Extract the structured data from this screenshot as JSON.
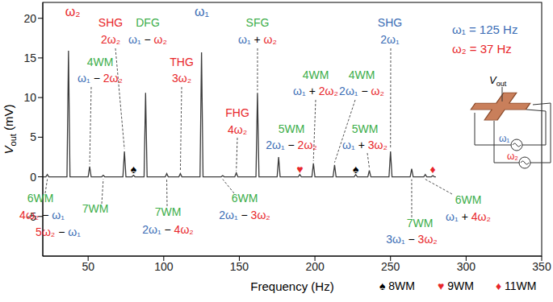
{
  "chart_data": {
    "type": "line",
    "xlabel": "Frequency (Hz)",
    "ylabel": "Vout (mV)",
    "xlim": [
      20,
      350
    ],
    "xticks": [
      50,
      100,
      150,
      200,
      250,
      300,
      350
    ],
    "ylim": [
      -10,
      22
    ],
    "yticks": [
      -5,
      0,
      5,
      10,
      15,
      20
    ],
    "color": "#3c3c3c",
    "x": [
      20,
      22,
      23,
      24,
      36,
      37,
      38,
      50,
      51,
      52,
      59,
      60,
      61,
      73,
      74,
      75,
      79,
      80,
      81,
      87,
      88,
      89,
      101,
      102,
      103,
      110,
      111,
      112,
      124,
      125,
      126,
      138,
      139,
      140,
      147,
      148,
      149,
      161,
      162,
      163,
      175,
      176,
      177,
      189,
      190,
      191,
      198,
      199,
      200,
      212,
      213,
      214,
      226,
      227,
      228,
      235,
      236,
      237,
      249,
      250,
      251,
      263,
      264,
      265,
      272,
      273,
      274,
      277,
      278,
      279,
      280
    ],
    "values": [
      0,
      0,
      0.3,
      0,
      0,
      15.9,
      0,
      0,
      1.3,
      0,
      0,
      0.2,
      0,
      0,
      3.2,
      0,
      0,
      0.2,
      0,
      0,
      10.6,
      0,
      0,
      0.4,
      0,
      0,
      0.4,
      0,
      0,
      15.7,
      0,
      0,
      0.15,
      0,
      0,
      0.5,
      0,
      0,
      10.6,
      0,
      0,
      2.5,
      0,
      0,
      0.3,
      0,
      0,
      1.7,
      0,
      0,
      1.5,
      0,
      0,
      0.3,
      0,
      0,
      0.8,
      0,
      0,
      3.2,
      0,
      0,
      1,
      0,
      0,
      0.3,
      0,
      0,
      0.15,
      0,
      0
    ],
    "annotations": [
      {
        "formula": "ω₂",
        "x": 37
      },
      {
        "formula": "ω₁",
        "x": 125
      },
      {
        "order": "SHG",
        "formula": "2ω₂",
        "color": "#e8262a",
        "x": 74
      },
      {
        "order": "DFG",
        "formula": "ω₁ − ω₂",
        "color": "#3cae4a",
        "x": 88
      },
      {
        "order": "4WM",
        "formula": "ω₁ − 2ω₂",
        "color": "#3cae4a",
        "x": 51
      },
      {
        "order": "THG",
        "formula": "3ω₂",
        "color": "#e8262a",
        "x": 111
      },
      {
        "order": "FHG",
        "formula": "4ω₂",
        "color": "#e8262a",
        "x": 148
      },
      {
        "order": "SFG",
        "formula": "ω₁ + ω₂",
        "color": "#3cae4a",
        "x": 162
      },
      {
        "order": "4WM",
        "formula": "ω₁ + 2ω₂",
        "color": "#3cae4a",
        "x": 199
      },
      {
        "order": "5WM",
        "formula": "2ω₁ − 2ω₂",
        "color": "#3cae4a",
        "x": 176
      },
      {
        "order": "4WM",
        "formula": "2ω₁ − ω₂",
        "color": "#3cae4a",
        "x": 213
      },
      {
        "order": "5WM",
        "formula": "ω₁ + 3ω₂",
        "color": "#3cae4a",
        "x": 236
      },
      {
        "order": "SHG",
        "formula": "2ω₁",
        "color": "#3a6db5",
        "x": 250
      },
      {
        "order": "6WM",
        "formula": "4ω₂ − ω₁",
        "color": "#3cae4a",
        "x": 23
      },
      {
        "order": "7WM",
        "formula": "5ω₂ − ω₁",
        "color": "#3cae4a",
        "x": 60
      },
      {
        "order": "7WM",
        "formula": "2ω₁ − 4ω₂",
        "color": "#3cae4a",
        "x": 102
      },
      {
        "order": "6WM",
        "formula": "2ω₁ − 3ω₂",
        "color": "#3cae4a",
        "x": 139
      },
      {
        "order": "7WM",
        "formula": "3ω₁ − 3ω₂",
        "color": "#3cae4a",
        "x": 264
      },
      {
        "order": "6WM",
        "formula": "ω₁ + 4ω₂",
        "color": "#3cae4a",
        "x": 273
      }
    ],
    "markers": [
      {
        "symbol": "♠",
        "label": "8WM",
        "color": "#000000",
        "x": 80
      },
      {
        "symbol": "♥",
        "label": "9WM",
        "color": "#e8262a",
        "x": 190
      },
      {
        "symbol": "♠",
        "label": "8WM",
        "color": "#000000",
        "x": 227
      },
      {
        "symbol": "♦",
        "label": "11WM",
        "color": "#e8262a",
        "x": 278
      }
    ],
    "frequencies": [
      {
        "label": "ω₁ = 125 Hz",
        "color": "#3a6db5"
      },
      {
        "label": "ω₂ = 37 Hz",
        "color": "#e8262a"
      }
    ],
    "inset": {
      "output": "V",
      "output_subscript": "out"
    }
  }
}
